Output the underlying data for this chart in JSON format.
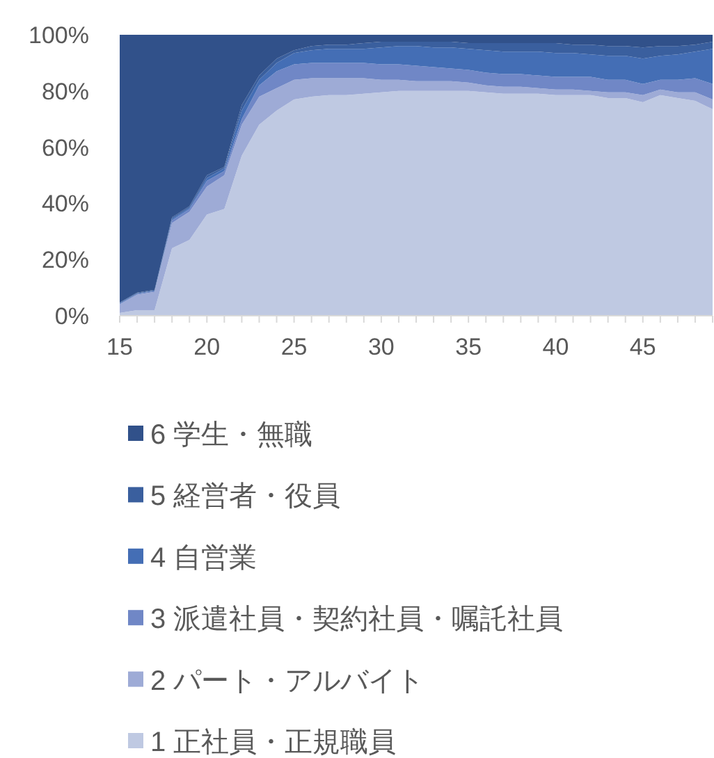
{
  "chart_data": {
    "type": "area",
    "stacked": true,
    "legend": "bottom",
    "x": [
      15,
      16,
      17,
      18,
      19,
      20,
      21,
      22,
      23,
      24,
      25,
      26,
      27,
      28,
      29,
      30,
      31,
      32,
      33,
      34,
      35,
      36,
      37,
      38,
      39,
      40,
      41,
      42,
      43,
      44,
      45,
      46,
      47,
      48,
      49
    ],
    "xlim": [
      15,
      49
    ],
    "xticks": [
      15,
      20,
      25,
      30,
      35,
      40,
      45
    ],
    "ylim": [
      0,
      100
    ],
    "yticks": [
      {
        "value": 0,
        "label": "0%"
      },
      {
        "value": 20,
        "label": "20%"
      },
      {
        "value": 40,
        "label": "40%"
      },
      {
        "value": 60,
        "label": "60%"
      },
      {
        "value": 80,
        "label": "80%"
      },
      {
        "value": 100,
        "label": "100%"
      }
    ],
    "series": [
      {
        "name": "1 正社員・正規職員",
        "color": "#bfc9e2",
        "values": [
          1,
          2,
          2,
          24,
          27,
          36,
          38,
          57,
          68,
          73,
          77,
          78,
          78.5,
          78.5,
          79,
          79.5,
          80,
          80,
          80,
          80,
          80,
          79.5,
          79,
          79,
          79,
          78.5,
          78.5,
          78.5,
          77.5,
          77.5,
          76,
          78.5,
          77.5,
          76.5,
          73.5
        ]
      },
      {
        "name": "2 パート・アルバイト",
        "color": "#9eabd6",
        "values": [
          3,
          5.5,
          6.5,
          9,
          10,
          10,
          12,
          11,
          10,
          8,
          7,
          6.5,
          6,
          6,
          5.5,
          4.5,
          4,
          3.5,
          3.5,
          3.5,
          3,
          2.5,
          2.5,
          2.5,
          2,
          2,
          2,
          1.5,
          2,
          2,
          2.5,
          2,
          2,
          3,
          3.5
        ]
      },
      {
        "name": "3 派遣社員・契約社員・嘱託社員",
        "color": "#7087c6",
        "values": [
          0.3,
          0.3,
          0.3,
          1,
          1,
          2,
          1.5,
          2,
          4,
          6,
          5.5,
          5.5,
          5.5,
          5.5,
          5.5,
          5.5,
          5.5,
          5.5,
          5,
          4.5,
          4.5,
          4.5,
          4.5,
          4.5,
          4.5,
          4.5,
          4.5,
          5,
          4.5,
          4.5,
          4,
          3.5,
          4.5,
          5,
          5.5
        ]
      },
      {
        "name": "4 自営業",
        "color": "#446eb5",
        "values": [
          0.2,
          0.2,
          0.2,
          0.5,
          0.5,
          1,
          1,
          3,
          2,
          3,
          4,
          4.5,
          5,
          5,
          5,
          6,
          6.5,
          7,
          7,
          7.5,
          7.5,
          8,
          8,
          8,
          8.5,
          8.5,
          8.5,
          8,
          8.5,
          8.5,
          9,
          8.5,
          9,
          9.5,
          12.5
        ]
      },
      {
        "name": "5 経営者・役員",
        "color": "#3a5f9e",
        "values": [
          0.2,
          0.2,
          0.2,
          0.5,
          0.5,
          1,
          0.5,
          2,
          1.5,
          1.5,
          1,
          1.5,
          1.5,
          1.5,
          2,
          2,
          1.5,
          1.5,
          2,
          2,
          2,
          2.5,
          3,
          3,
          3,
          3.5,
          3,
          3.5,
          3.5,
          3.5,
          4,
          3.5,
          3,
          2.5,
          2.5
        ]
      },
      {
        "name": "6 学生・無職",
        "color": "#31518a",
        "values": [
          95.3,
          91.8,
          90.8,
          65,
          61,
          50,
          47,
          25,
          14.5,
          8.5,
          5.5,
          4,
          3.5,
          3.5,
          3,
          2.5,
          2.5,
          2.5,
          2.5,
          2.5,
          3,
          3,
          3,
          3,
          3,
          3,
          3.5,
          3.5,
          4,
          4,
          4.5,
          4,
          4,
          3.5,
          2.5
        ]
      }
    ]
  }
}
